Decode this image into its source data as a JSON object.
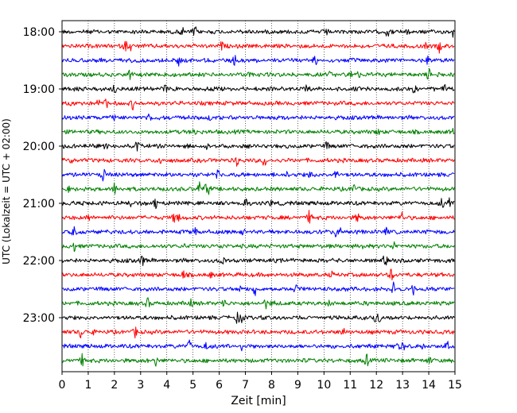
{
  "chart_data": {
    "type": "line",
    "title": "",
    "xlabel": "Zeit  [min]",
    "ylabel": "UTC (Lokalzeit = UTC + 02:00)",
    "xlim": [
      0,
      15
    ],
    "x_ticks": [
      "0",
      "1",
      "2",
      "3",
      "4",
      "5",
      "6",
      "7",
      "8",
      "9",
      "10",
      "11",
      "12",
      "13",
      "14",
      "15"
    ],
    "y_ticks": [
      "18:00",
      "19:00",
      "20:00",
      "21:00",
      "22:00",
      "23:00"
    ],
    "grid": "vertical-dotted",
    "trace_interval_min": 15,
    "traces_start": "18:00",
    "trace_count": 24,
    "colors": [
      "#000000",
      "#ff0000",
      "#0000ff",
      "#008000"
    ]
  }
}
